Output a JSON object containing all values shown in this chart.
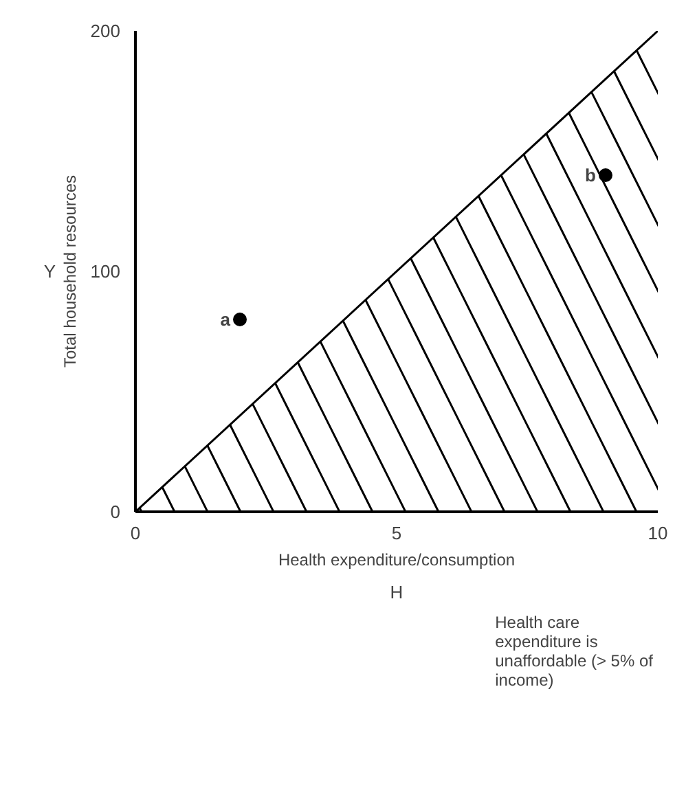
{
  "chart_data": {
    "type": "scatter",
    "xlabel": "Health expenditure/consumption",
    "ylabel": "Total household resources",
    "xlim": [
      0,
      10
    ],
    "ylim": [
      0,
      200
    ],
    "xticks": [
      0,
      5,
      10
    ],
    "yticks": [
      0,
      100,
      200
    ],
    "grid": false,
    "legend": "bottom right",
    "series": [
      {
        "type": "area",
        "name": "Health care expenditure is unaffordable (> 5% of income)",
        "color": "#000000",
        "x": [
          0,
          10
        ],
        "values": [
          0,
          200
        ]
      },
      {
        "marker": "circle",
        "color": "#000000",
        "x": [
          2,
          9
        ],
        "values": [
          80,
          140
        ]
      }
    ],
    "annotations": [
      "Y",
      "H",
      {
        "text": "a",
        "x": 2,
        "y": 80
      },
      {
        "text": "b",
        "x": 9,
        "y": 140
      }
    ]
  }
}
